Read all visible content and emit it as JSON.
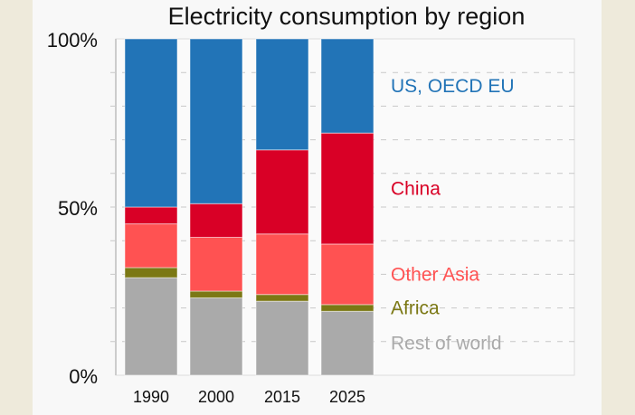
{
  "chart_data": {
    "type": "bar",
    "stacked": true,
    "title": "Electricity consumption by region",
    "categories": [
      "1990",
      "2000",
      "2015",
      "2025"
    ],
    "ylim": [
      0,
      100
    ],
    "yticks": [
      "0%",
      "50%",
      "100%"
    ],
    "grid": true,
    "legend": "right, inline labels",
    "series": [
      {
        "name": "Rest of world",
        "color": "#aaaaaa",
        "values": [
          29,
          23,
          22,
          19
        ]
      },
      {
        "name": "Africa",
        "color": "#7b7814",
        "values": [
          3,
          2,
          2,
          2
        ]
      },
      {
        "name": "Other Asia",
        "color": "#ff5252",
        "values": [
          13,
          16,
          18,
          18
        ]
      },
      {
        "name": "China",
        "color": "#d90026",
        "values": [
          5,
          10,
          25,
          33
        ]
      },
      {
        "name": "US, OECD EU",
        "color": "#2274b7",
        "values": [
          50,
          49,
          33,
          28
        ]
      }
    ]
  }
}
